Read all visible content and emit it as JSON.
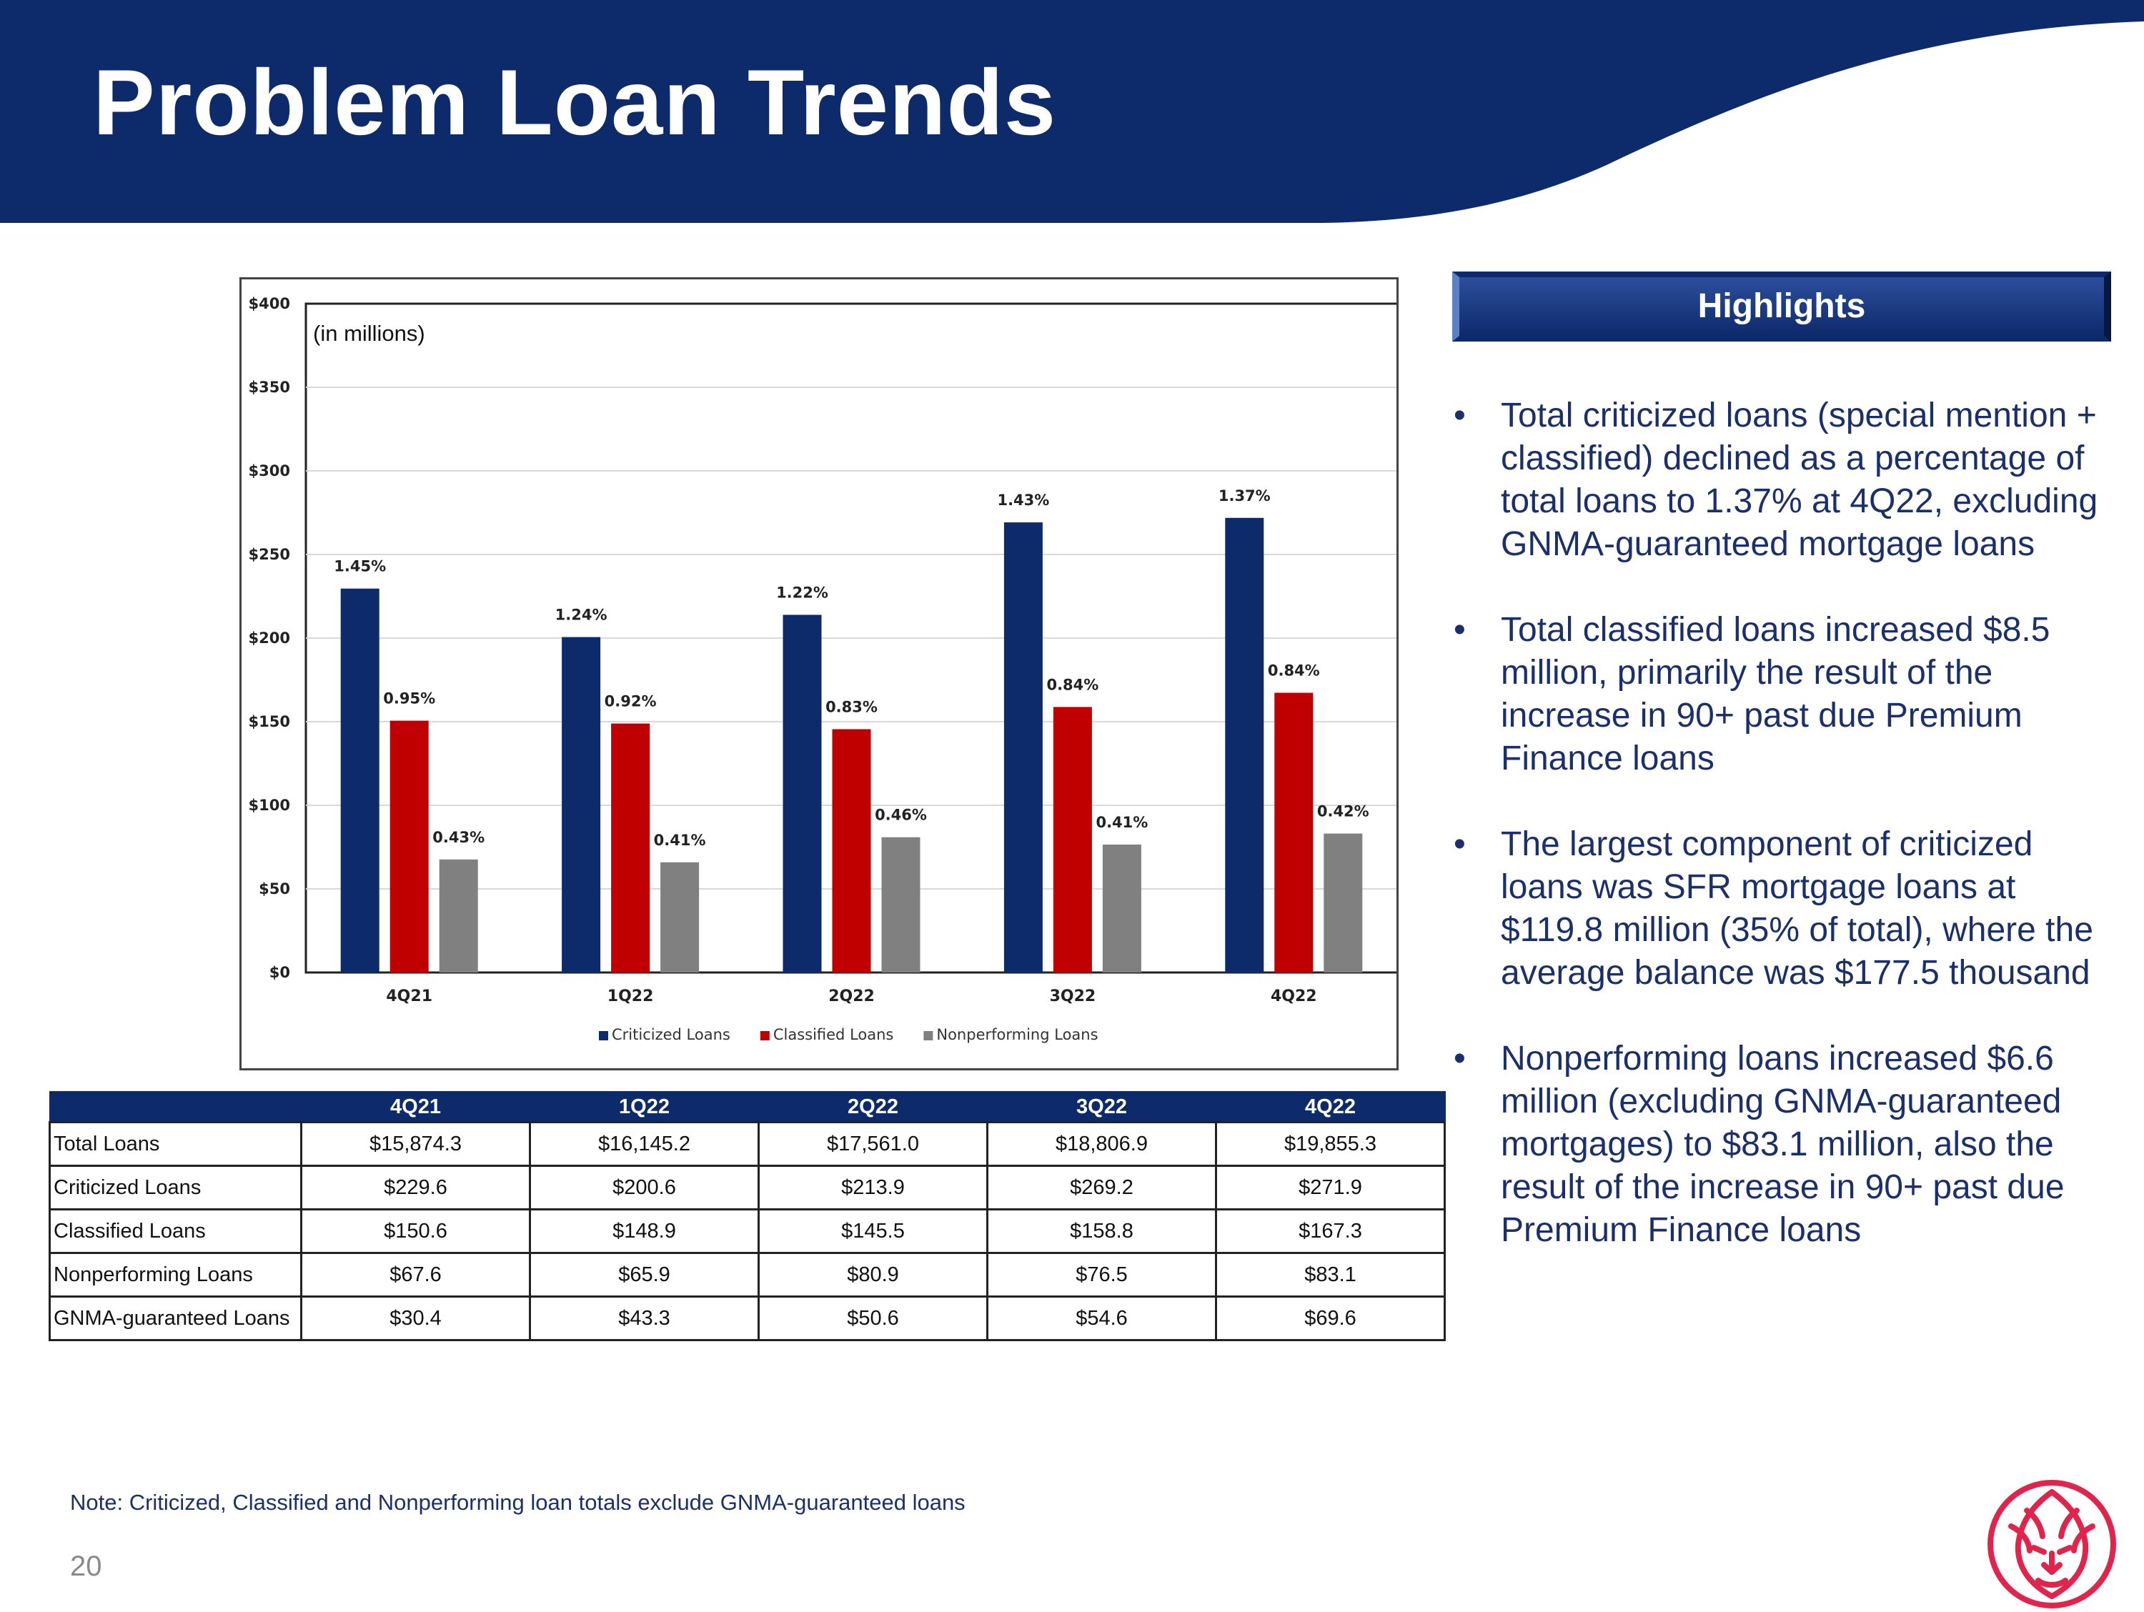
{
  "header": {
    "title": "Problem Loan Trends"
  },
  "chart_data": {
    "type": "bar",
    "unit_note": "(in millions)",
    "categories": [
      "4Q21",
      "1Q22",
      "2Q22",
      "3Q22",
      "4Q22"
    ],
    "y_ticks": [
      "$0",
      "$50",
      "$100",
      "$150",
      "$200",
      "$250",
      "$300",
      "$350",
      "$400"
    ],
    "ylim": [
      0,
      400
    ],
    "grid": true,
    "legend_position": "bottom",
    "series": [
      {
        "name": "Criticized Loans",
        "color": "#0d2a6b",
        "values": [
          229.6,
          200.6,
          213.9,
          269.2,
          271.9
        ],
        "labels": [
          "1.45%",
          "1.24%",
          "1.22%",
          "1.43%",
          "1.37%"
        ]
      },
      {
        "name": "Classified Loans",
        "color": "#c00000",
        "values": [
          150.6,
          148.9,
          145.5,
          158.8,
          167.3
        ],
        "labels": [
          "0.95%",
          "0.92%",
          "0.83%",
          "0.84%",
          "0.84%"
        ]
      },
      {
        "name": "Nonperforming Loans",
        "color": "#808080",
        "values": [
          67.6,
          65.9,
          80.9,
          76.5,
          83.1
        ],
        "labels": [
          "0.43%",
          "0.41%",
          "0.46%",
          "0.41%",
          "0.42%"
        ]
      }
    ]
  },
  "table": {
    "columns": [
      "4Q21",
      "1Q22",
      "2Q22",
      "3Q22",
      "4Q22"
    ],
    "rows": [
      {
        "label": "Total Loans",
        "values": [
          "$15,874.3",
          "$16,145.2",
          "$17,561.0",
          "$18,806.9",
          "$19,855.3"
        ]
      },
      {
        "label": "Criticized Loans",
        "values": [
          "$229.6",
          "$200.6",
          "$213.9",
          "$269.2",
          "$271.9"
        ]
      },
      {
        "label": "Classified Loans",
        "values": [
          "$150.6",
          "$148.9",
          "$145.5",
          "$158.8",
          "$167.3"
        ]
      },
      {
        "label": "Nonperforming Loans",
        "values": [
          "$67.6",
          "$65.9",
          "$80.9",
          "$76.5",
          "$83.1"
        ]
      },
      {
        "label": "GNMA-guaranteed Loans",
        "values": [
          "$30.4",
          "$43.3",
          "$50.6",
          "$54.6",
          "$69.6"
        ]
      }
    ]
  },
  "highlights": {
    "title": "Highlights",
    "bullets": [
      "Total criticized loans (special mention + classified) declined as a percentage of total loans to 1.37% at 4Q22, excluding GNMA-guaranteed mortgage loans",
      "Total classified loans increased $8.5 million, primarily the result of the increase in 90+ past due Premium Finance loans",
      "The largest component of criticized loans was SFR mortgage loans at $119.8 million (35% of total), where the average balance was $177.5 thousand",
      "Nonperforming loans increased $6.6 million (excluding GNMA-guaranteed mortgages) to $83.1 million, also the result of the increase in 90+ past due Premium Finance loans"
    ]
  },
  "footer": {
    "note": "Note: Criticized, Classified and Nonperforming loan totals exclude GNMA-guaranteed loans",
    "page_number": "20"
  },
  "colors": {
    "navy": "#0d2a6b",
    "red": "#c00000",
    "gray": "#808080",
    "logo": "#e0244b"
  },
  "icons": {
    "logo": "lion-head-logo-icon",
    "bullet": "bullet-dot-icon"
  }
}
